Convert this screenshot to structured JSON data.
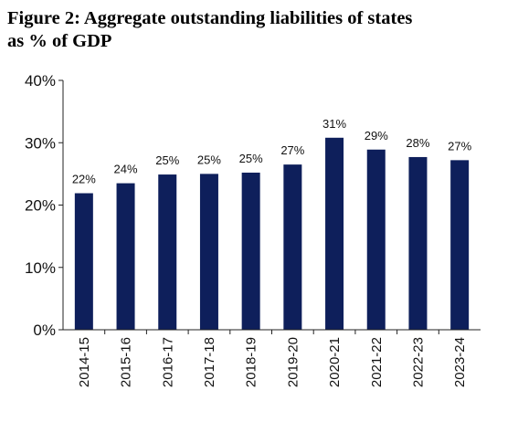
{
  "header": {
    "title_line1": "Figure 2:  Aggregate outstanding liabilities of states",
    "title_line2": "as % of GDP"
  },
  "chart_data": {
    "type": "bar",
    "title": "Figure 2:  Aggregate outstanding liabilities of states as % of GDP",
    "categories": [
      "2014-15",
      "2015-16",
      "2016-17",
      "2017-18",
      "2018-19",
      "2019-20",
      "2020-21",
      "2021-22",
      "2022-23",
      "2023-24"
    ],
    "values": [
      21.9,
      23.5,
      24.9,
      25.0,
      25.2,
      26.5,
      30.8,
      28.9,
      27.7,
      27.2
    ],
    "data_labels": [
      "22%",
      "24%",
      "25%",
      "25%",
      "25%",
      "27%",
      "31%",
      "29%",
      "28%",
      "27%"
    ],
    "ylim": [
      0,
      40
    ],
    "yticks": [
      0,
      10,
      20,
      30,
      40
    ],
    "ytick_labels": [
      "0%",
      "10%",
      "20%",
      "30%",
      "40%"
    ],
    "bar_color": "#0e1f5b",
    "grid": false,
    "xlabel": "",
    "ylabel": ""
  }
}
